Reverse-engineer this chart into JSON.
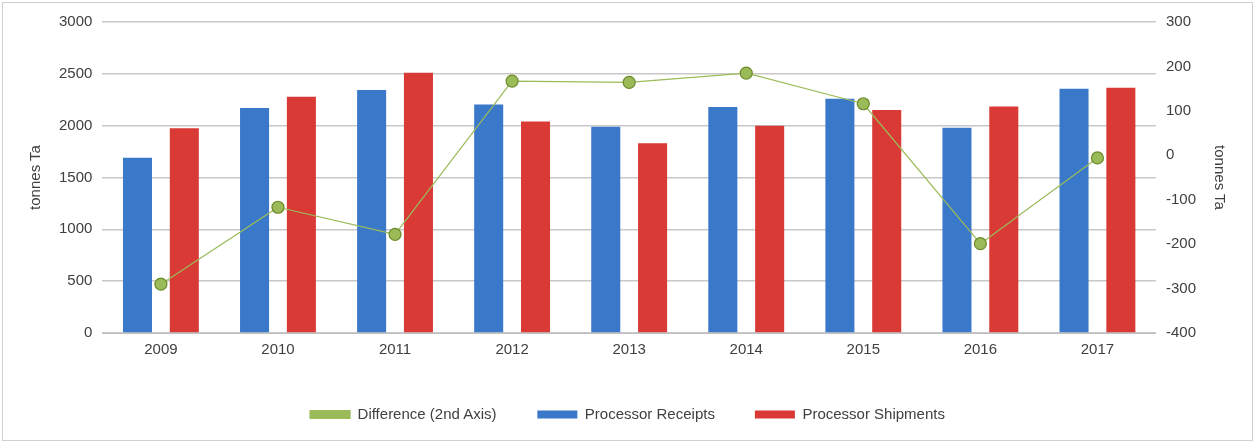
{
  "chart_data": {
    "type": "bar",
    "ylabel": "tonnes Ta",
    "y2label": "tonnes Ta",
    "categories": [
      "2009",
      "2010",
      "2011",
      "2012",
      "2013",
      "2014",
      "2015",
      "2016",
      "2017"
    ],
    "series": [
      {
        "name": "Processor Receipts",
        "color": "#3a78c9",
        "values": [
          1690,
          2170,
          2345,
          2205,
          1990,
          2180,
          2260,
          1980,
          2355
        ]
      },
      {
        "name": "Processor Shipments",
        "color": "#d93a36",
        "values": [
          1975,
          2280,
          2510,
          2040,
          1830,
          2000,
          2150,
          2185,
          2365
        ]
      },
      {
        "name": "Difference (2nd Axis)",
        "type": "line",
        "axis": "y2",
        "color": "#9bbb59",
        "marker": "circle",
        "values": [
          -290,
          -117,
          -178,
          167,
          164,
          185,
          116,
          -199,
          -6
        ]
      }
    ],
    "ylim": [
      0,
      3000
    ],
    "yticks": [
      0,
      500,
      1000,
      1500,
      2000,
      2500,
      3000
    ],
    "y2lim": [
      -400,
      300
    ],
    "y2ticks": [
      -400,
      -300,
      -200,
      -100,
      0,
      100,
      200,
      300
    ],
    "grid": "y",
    "legend": "bottom"
  }
}
